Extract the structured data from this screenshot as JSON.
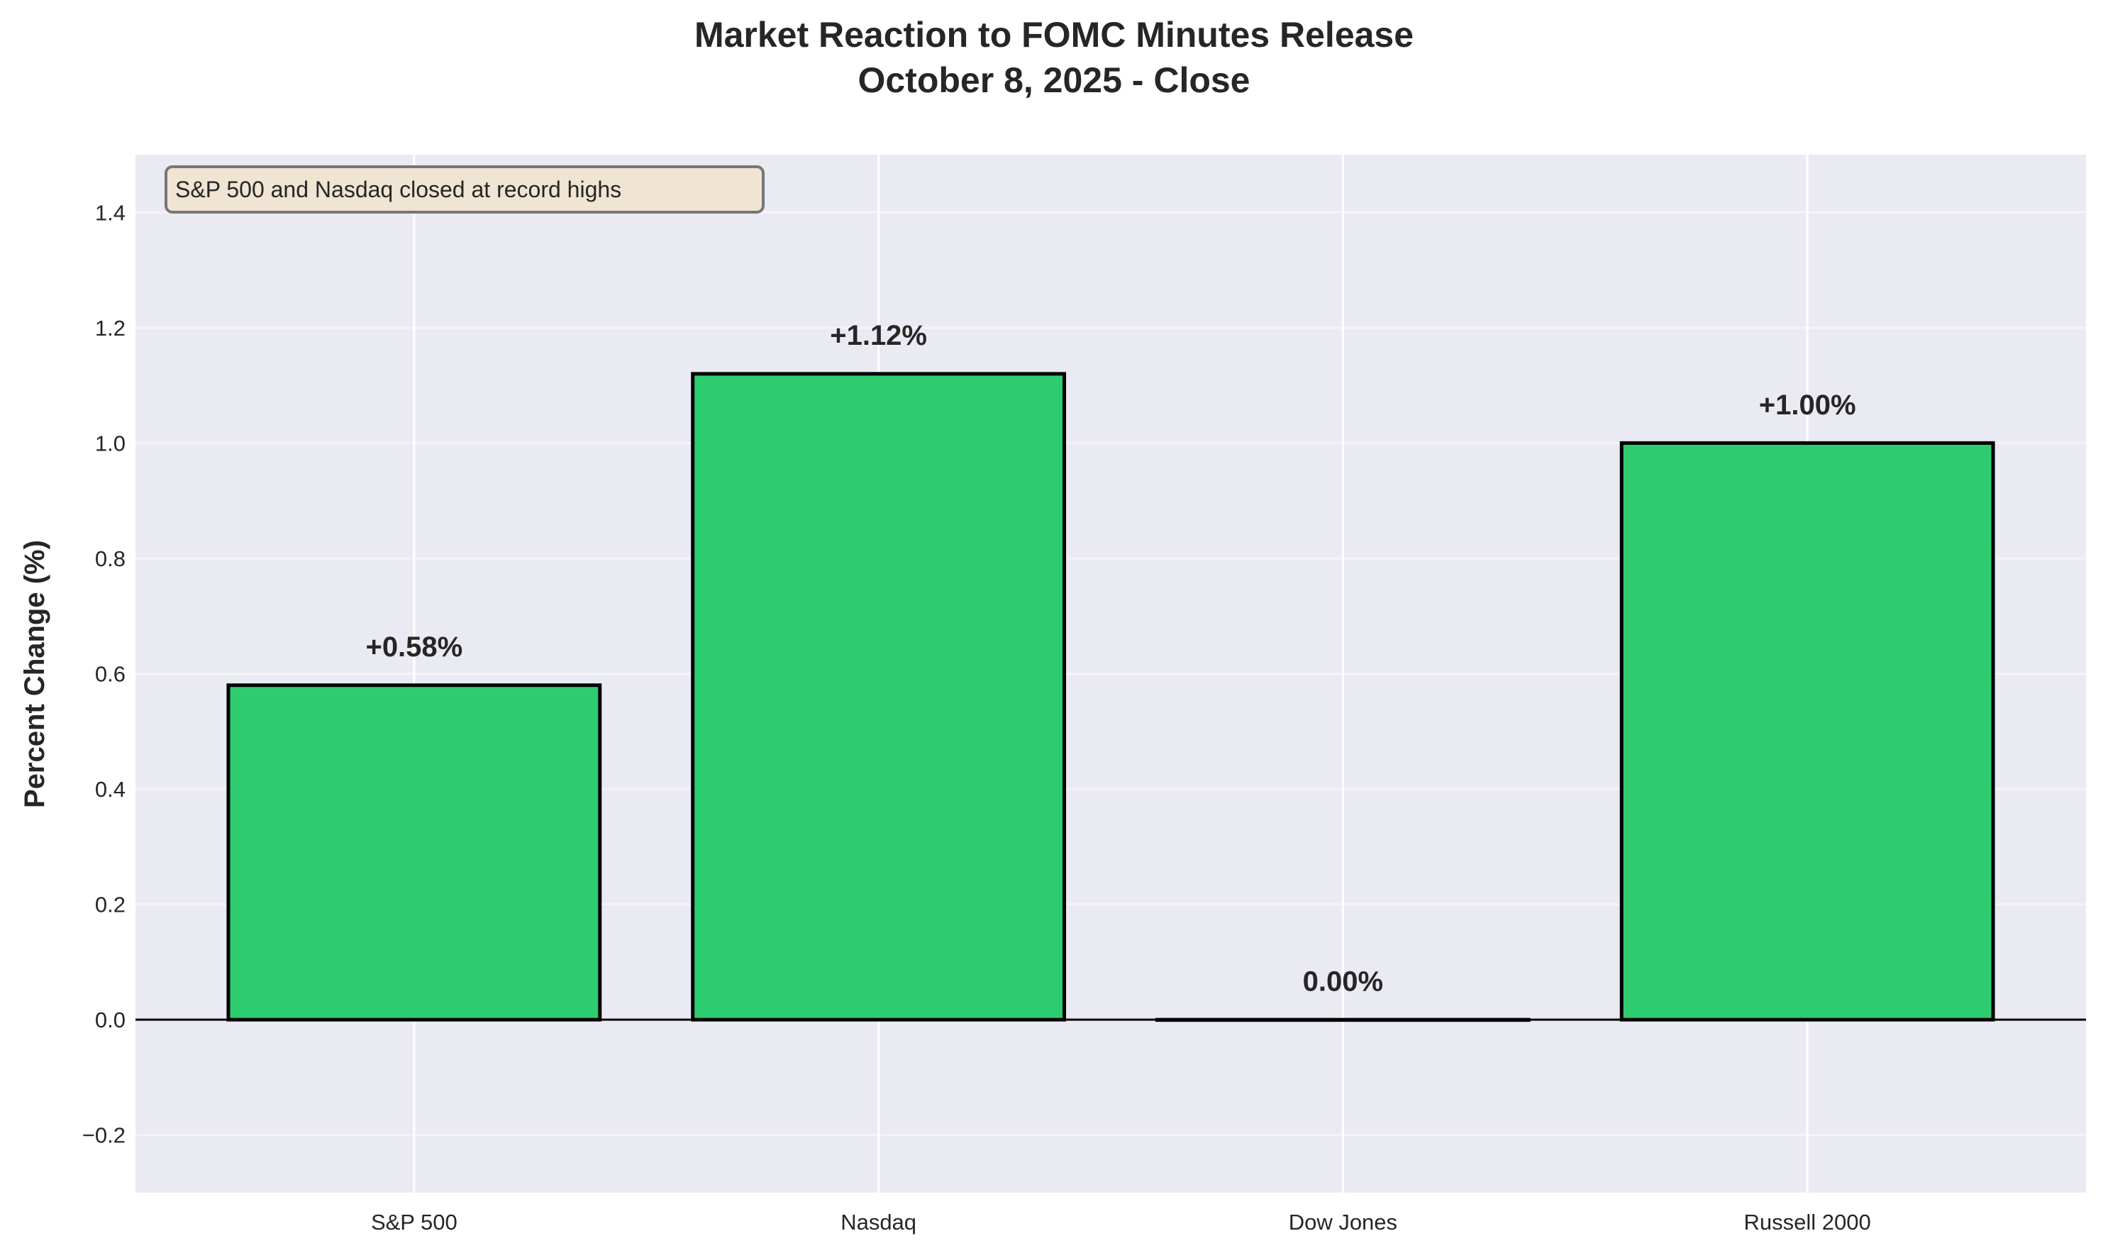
{
  "chart_data": {
    "type": "bar",
    "title": "Market Reaction to FOMC Minutes Release",
    "subtitle": "October 8, 2025 - Close",
    "xlabel": "",
    "ylabel": "Percent Change (%)",
    "categories": [
      "S&P 500",
      "Nasdaq",
      "Dow Jones",
      "Russell 2000"
    ],
    "values": [
      0.58,
      1.12,
      0.0,
      1.0
    ],
    "data_labels": [
      "+0.58%",
      "+1.12%",
      "0.00%",
      "+1.00%"
    ],
    "ylim": [
      -0.3,
      1.5
    ],
    "yticks": [
      -0.2,
      0.0,
      0.2,
      0.4,
      0.6,
      0.8,
      1.0,
      1.2,
      1.4
    ],
    "ytick_labels": [
      "−0.2",
      "0.0",
      "0.2",
      "0.4",
      "0.6",
      "0.8",
      "1.0",
      "1.2",
      "1.4"
    ],
    "grid": true,
    "annotation": "S&P 500 and Nasdaq closed at record highs",
    "colors": {
      "bar": "#2ecc71",
      "edge": "#000000",
      "background": "#eaeaf2",
      "annotation_bg": "#f0e4d2"
    }
  }
}
